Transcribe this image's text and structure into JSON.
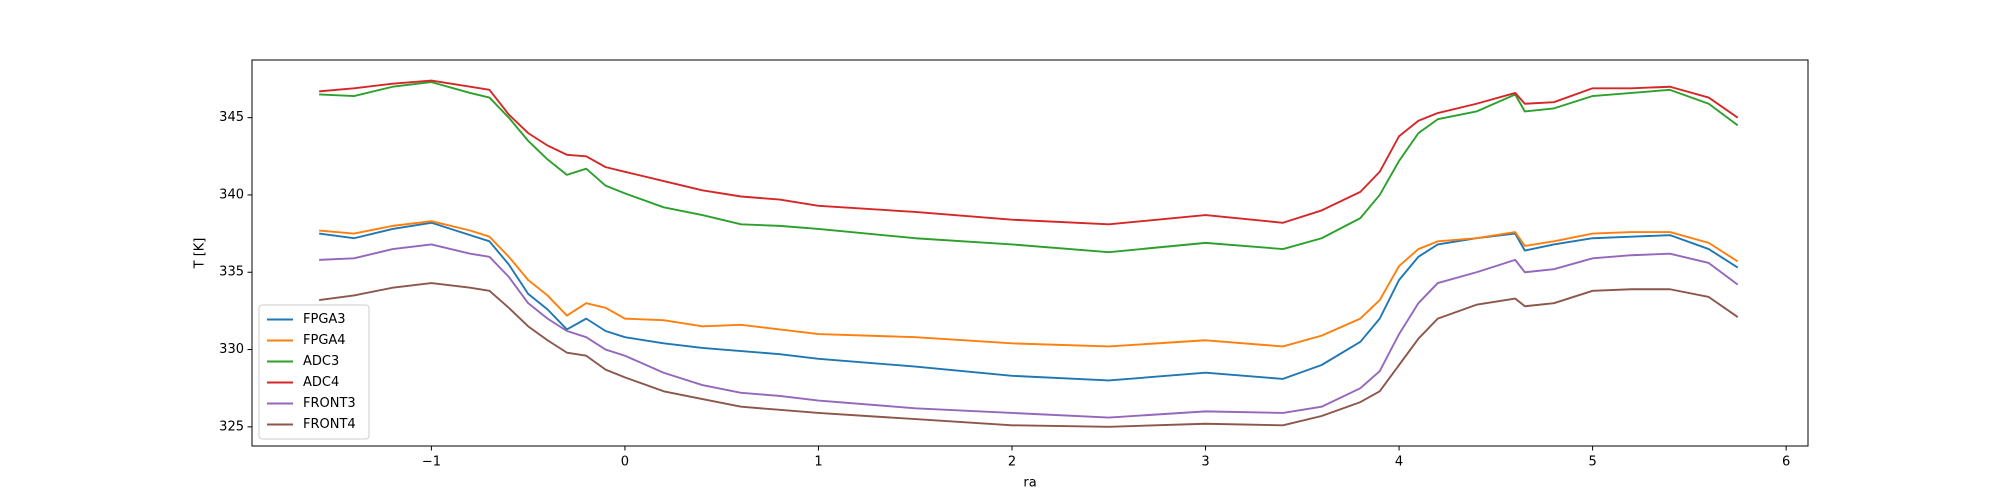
{
  "chart_data": {
    "type": "line",
    "x_label": "ra",
    "y_label": "T [K]",
    "x": [
      -1.58,
      -1.4,
      -1.2,
      -1.0,
      -0.8,
      -0.7,
      -0.6,
      -0.5,
      -0.4,
      -0.3,
      -0.2,
      -0.1,
      0,
      0.2,
      0.4,
      0.6,
      0.8,
      1.0,
      1.5,
      2.0,
      2.5,
      3.0,
      3.4,
      3.6,
      3.8,
      3.9,
      4.0,
      4.1,
      4.2,
      4.4,
      4.6,
      4.65,
      4.8,
      5.0,
      5.2,
      5.4,
      5.6,
      5.75
    ],
    "series": [
      {
        "name": "FPGA3",
        "color": "#1f77b4",
        "values": [
          337.5,
          337.2,
          337.8,
          338.2,
          337.4,
          337.0,
          335.5,
          333.6,
          332.6,
          331.3,
          332.0,
          331.2,
          330.8,
          330.4,
          330.1,
          329.9,
          329.7,
          329.4,
          328.9,
          328.3,
          328.0,
          328.5,
          328.1,
          329.0,
          330.5,
          332.0,
          334.5,
          336.0,
          336.8,
          337.2,
          337.5,
          336.4,
          336.8,
          337.2,
          337.3,
          337.4,
          336.5,
          335.3
        ]
      },
      {
        "name": "FPGA4",
        "color": "#ff7f0e",
        "values": [
          337.7,
          337.5,
          338.0,
          338.3,
          337.7,
          337.3,
          336.0,
          334.5,
          333.5,
          332.2,
          333.0,
          332.7,
          332.0,
          331.9,
          331.5,
          331.6,
          331.3,
          331.0,
          330.8,
          330.4,
          330.2,
          330.6,
          330.2,
          330.9,
          332.0,
          333.2,
          335.4,
          336.5,
          337.0,
          337.2,
          337.6,
          336.7,
          337.0,
          337.5,
          337.6,
          337.6,
          336.9,
          335.7
        ]
      },
      {
        "name": "ADC3",
        "color": "#2ca02c",
        "values": [
          346.5,
          346.4,
          347.0,
          347.3,
          346.6,
          346.3,
          345.0,
          343.5,
          342.3,
          341.3,
          341.7,
          340.6,
          340.1,
          339.2,
          338.7,
          338.1,
          338.0,
          337.8,
          337.2,
          336.8,
          336.3,
          336.9,
          336.5,
          337.2,
          338.5,
          340.0,
          342.2,
          344.0,
          344.9,
          345.4,
          346.5,
          345.4,
          345.6,
          346.4,
          346.6,
          346.8,
          345.9,
          344.5
        ]
      },
      {
        "name": "ADC4",
        "color": "#d62728",
        "values": [
          346.7,
          346.9,
          347.2,
          347.4,
          347.0,
          346.8,
          345.2,
          344.0,
          343.2,
          342.6,
          342.5,
          341.8,
          341.5,
          340.9,
          340.3,
          339.9,
          339.7,
          339.3,
          338.9,
          338.4,
          338.1,
          338.7,
          338.2,
          339.0,
          340.2,
          341.5,
          343.8,
          344.8,
          345.3,
          345.9,
          346.6,
          345.9,
          346.0,
          346.9,
          346.9,
          347.0,
          346.3,
          345.0
        ]
      },
      {
        "name": "FRONT3",
        "color": "#9467bd",
        "values": [
          335.8,
          335.9,
          336.5,
          336.8,
          336.2,
          336.0,
          334.7,
          333.0,
          332.0,
          331.2,
          330.8,
          330.0,
          329.6,
          328.5,
          327.7,
          327.2,
          327.0,
          326.7,
          326.2,
          325.9,
          325.6,
          326.0,
          325.9,
          326.3,
          327.5,
          328.6,
          331.0,
          333.0,
          334.3,
          335.0,
          335.8,
          335.0,
          335.2,
          335.9,
          336.1,
          336.2,
          335.6,
          334.2
        ]
      },
      {
        "name": "FRONT4",
        "color": "#8c564b",
        "values": [
          333.2,
          333.5,
          334.0,
          334.3,
          334.0,
          333.8,
          332.7,
          331.5,
          330.6,
          329.8,
          329.6,
          328.7,
          328.2,
          327.3,
          326.8,
          326.3,
          326.1,
          325.9,
          325.5,
          325.1,
          325.0,
          325.2,
          325.1,
          325.7,
          326.6,
          327.3,
          329.0,
          330.7,
          332.0,
          332.9,
          333.3,
          332.8,
          333.0,
          333.8,
          333.9,
          333.9,
          333.4,
          332.1
        ]
      }
    ],
    "xlim": [
      -1.927,
      6.113
    ],
    "ylim": [
      323.76,
      348.73
    ],
    "xticks": [
      {
        "value": -1,
        "label": "−1"
      },
      0,
      1,
      2,
      3,
      4,
      5,
      6
    ],
    "yticks": [
      325,
      330,
      335,
      340,
      345
    ],
    "legend": "lower left"
  }
}
